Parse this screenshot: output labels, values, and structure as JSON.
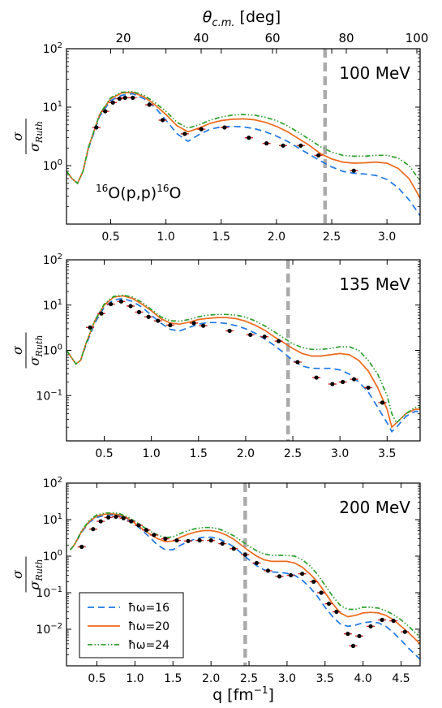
{
  "figure": {
    "top_axis_label": "θc.m. [deg]",
    "top_axis_symbol": "θ",
    "top_axis_subscript": "c.m.",
    "top_axis_unit": " [deg]",
    "bottom_axis_label": "q [fm⁻¹]",
    "bottom_axis_prefix": "q [fm",
    "bottom_axis_sup": "−1",
    "bottom_axis_suffix": "]",
    "y_label_num": "σ",
    "y_label_den": "σ",
    "y_label_den_sub": "Ruth",
    "reaction_mass_a": "16",
    "reaction_body": "O(p,p)",
    "reaction_mass_b": "16",
    "reaction_tail": "O",
    "top_ticks": [
      "20",
      "40",
      "60",
      "80",
      "100"
    ]
  },
  "legend": {
    "entries": [
      {
        "label": "ħω=16",
        "color": "#1f77e4",
        "style": "dashed"
      },
      {
        "label": "ħω=20",
        "color": "#ee6a1c",
        "style": "solid"
      },
      {
        "label": "ħω=24",
        "color": "#2ca02c",
        "style": "dash-dot-dot"
      }
    ]
  },
  "colors": {
    "hw16": "#1f77e4",
    "hw20": "#ee6a1c",
    "hw24": "#2ca02c",
    "data_point": "#000000",
    "error_bar": "#d62728",
    "reference_line": "#aaaaaa"
  },
  "chart_data": [
    {
      "type": "line",
      "energy_label": "100 MeV",
      "xlim": [
        0.1,
        3.3
      ],
      "ylim": [
        0.1,
        100
      ],
      "y_scale": "log",
      "x_ticks": [
        "0.5",
        "1.0",
        "1.5",
        "2.0",
        "2.5",
        "3.0"
      ],
      "y_ticks": [
        "10⁰",
        "10¹",
        "10²"
      ],
      "reference_line_q": 2.44,
      "series": [
        {
          "name": "ħω=16",
          "x": [
            0.1,
            0.15,
            0.2,
            0.25,
            0.3,
            0.4,
            0.5,
            0.6,
            0.7,
            0.8,
            0.9,
            1.0,
            1.1,
            1.2,
            1.3,
            1.4,
            1.5,
            1.6,
            1.7,
            1.8,
            1.9,
            2.0,
            2.1,
            2.2,
            2.3,
            2.4,
            2.5,
            2.6,
            2.7,
            2.8,
            2.9,
            3.0,
            3.1,
            3.2,
            3.3
          ],
          "y": [
            0.8,
            0.6,
            0.5,
            0.8,
            2.0,
            7.0,
            13.0,
            16.0,
            17.0,
            14.0,
            10.0,
            6.0,
            3.5,
            2.6,
            3.4,
            4.2,
            4.6,
            4.7,
            4.6,
            4.3,
            3.8,
            3.2,
            2.6,
            2.0,
            1.55,
            1.2,
            0.95,
            0.8,
            0.74,
            0.72,
            0.68,
            0.58,
            0.42,
            0.26,
            0.14
          ]
        },
        {
          "name": "ħω=20",
          "x": [
            0.1,
            0.15,
            0.2,
            0.25,
            0.3,
            0.4,
            0.5,
            0.6,
            0.7,
            0.8,
            0.9,
            1.0,
            1.1,
            1.2,
            1.3,
            1.4,
            1.5,
            1.6,
            1.7,
            1.8,
            1.9,
            2.0,
            2.1,
            2.2,
            2.3,
            2.4,
            2.5,
            2.6,
            2.7,
            2.8,
            2.9,
            3.0,
            3.1,
            3.2,
            3.3
          ],
          "y": [
            0.8,
            0.6,
            0.5,
            0.8,
            2.1,
            7.5,
            14.0,
            17.5,
            18.0,
            15.0,
            11.0,
            7.5,
            4.8,
            3.8,
            4.4,
            5.3,
            5.9,
            6.2,
            6.3,
            6.1,
            5.5,
            4.7,
            3.8,
            2.9,
            2.2,
            1.6,
            1.3,
            1.15,
            1.1,
            1.12,
            1.15,
            1.1,
            0.9,
            0.6,
            0.28
          ]
        },
        {
          "name": "ħω=24",
          "x": [
            0.1,
            0.15,
            0.2,
            0.25,
            0.3,
            0.4,
            0.5,
            0.6,
            0.7,
            0.8,
            0.9,
            1.0,
            1.1,
            1.2,
            1.3,
            1.4,
            1.5,
            1.6,
            1.7,
            1.8,
            1.9,
            2.0,
            2.1,
            2.2,
            2.3,
            2.4,
            2.5,
            2.6,
            2.7,
            2.8,
            2.9,
            3.0,
            3.1,
            3.2,
            3.3
          ],
          "y": [
            0.8,
            0.6,
            0.5,
            0.8,
            2.1,
            7.6,
            14.5,
            18.0,
            18.5,
            16.0,
            12.0,
            8.5,
            5.5,
            4.4,
            5.0,
            6.0,
            6.8,
            7.3,
            7.5,
            7.3,
            6.7,
            5.9,
            4.8,
            3.7,
            2.8,
            2.1,
            1.7,
            1.5,
            1.45,
            1.45,
            1.5,
            1.5,
            1.35,
            1.0,
            0.55
          ]
        }
      ],
      "measured": {
        "x": [
          0.37,
          0.45,
          0.52,
          0.58,
          0.63,
          0.7,
          0.85,
          0.97,
          1.17,
          1.32,
          1.53,
          1.75,
          1.91,
          2.06,
          2.22,
          2.38,
          2.7
        ],
        "y": [
          4.5,
          8.5,
          12.0,
          14.0,
          14.5,
          14.5,
          11.0,
          6.0,
          3.5,
          4.2,
          4.5,
          3.0,
          2.4,
          2.2,
          2.2,
          1.5,
          0.82
        ]
      }
    },
    {
      "type": "line",
      "energy_label": "135 MeV",
      "xlim": [
        0.1,
        3.85
      ],
      "ylim": [
        0.01,
        100
      ],
      "y_scale": "log",
      "x_ticks": [
        "0.5",
        "1.0",
        "1.5",
        "2.0",
        "2.5",
        "3.0",
        "3.5"
      ],
      "y_ticks": [
        "10⁻¹",
        "10⁰",
        "10¹",
        "10²"
      ],
      "reference_line_q": 2.45,
      "series": [
        {
          "name": "ħω=16",
          "x": [
            0.1,
            0.2,
            0.25,
            0.3,
            0.4,
            0.5,
            0.6,
            0.7,
            0.8,
            0.9,
            1.0,
            1.1,
            1.2,
            1.3,
            1.4,
            1.5,
            1.6,
            1.7,
            1.8,
            1.9,
            2.0,
            2.1,
            2.2,
            2.3,
            2.4,
            2.5,
            2.6,
            2.7,
            2.8,
            2.9,
            3.0,
            3.1,
            3.2,
            3.3,
            3.4,
            3.5,
            3.55,
            3.6,
            3.7,
            3.8,
            3.85
          ],
          "y": [
            1.0,
            0.5,
            0.6,
            1.2,
            4.0,
            9.0,
            13.0,
            14.0,
            12.0,
            9.0,
            6.0,
            4.0,
            2.9,
            2.7,
            3.2,
            3.8,
            4.1,
            4.1,
            3.9,
            3.5,
            3.0,
            2.4,
            1.8,
            1.3,
            0.9,
            0.6,
            0.45,
            0.4,
            0.4,
            0.4,
            0.37,
            0.3,
            0.2,
            0.12,
            0.055,
            0.025,
            0.016,
            0.02,
            0.035,
            0.045,
            0.045
          ]
        },
        {
          "name": "ħω=20",
          "x": [
            0.1,
            0.2,
            0.25,
            0.3,
            0.4,
            0.5,
            0.6,
            0.7,
            0.8,
            0.9,
            1.0,
            1.1,
            1.2,
            1.3,
            1.4,
            1.5,
            1.6,
            1.7,
            1.8,
            1.9,
            2.0,
            2.1,
            2.2,
            2.3,
            2.4,
            2.5,
            2.6,
            2.7,
            2.8,
            2.9,
            3.0,
            3.1,
            3.2,
            3.3,
            3.4,
            3.5,
            3.55,
            3.6,
            3.7,
            3.8,
            3.85
          ],
          "y": [
            1.0,
            0.5,
            0.6,
            1.3,
            4.5,
            10.0,
            15.0,
            16.0,
            14.0,
            10.5,
            7.5,
            5.0,
            4.0,
            3.8,
            4.2,
            4.8,
            5.1,
            5.3,
            5.3,
            5.0,
            4.4,
            3.6,
            2.8,
            2.0,
            1.5,
            1.1,
            0.85,
            0.75,
            0.75,
            0.8,
            0.85,
            0.8,
            0.6,
            0.35,
            0.15,
            0.05,
            0.02,
            0.025,
            0.04,
            0.05,
            0.05
          ]
        },
        {
          "name": "ħω=24",
          "x": [
            0.1,
            0.2,
            0.25,
            0.3,
            0.4,
            0.5,
            0.6,
            0.7,
            0.8,
            0.9,
            1.0,
            1.1,
            1.2,
            1.3,
            1.4,
            1.5,
            1.6,
            1.7,
            1.8,
            1.9,
            2.0,
            2.1,
            2.2,
            2.3,
            2.4,
            2.5,
            2.6,
            2.7,
            2.8,
            2.9,
            3.0,
            3.1,
            3.2,
            3.3,
            3.4,
            3.5,
            3.55,
            3.6,
            3.7,
            3.8,
            3.85
          ],
          "y": [
            1.0,
            0.5,
            0.6,
            1.3,
            4.6,
            10.5,
            15.5,
            16.5,
            15.0,
            11.5,
            8.0,
            5.5,
            4.5,
            4.4,
            4.8,
            5.5,
            6.0,
            6.2,
            6.2,
            6.0,
            5.4,
            4.5,
            3.5,
            2.6,
            1.9,
            1.4,
            1.15,
            1.05,
            1.05,
            1.1,
            1.2,
            1.2,
            1.0,
            0.6,
            0.3,
            0.1,
            0.04,
            0.025,
            0.04,
            0.055,
            0.055
          ]
        }
      ],
      "measured": {
        "x": [
          0.35,
          0.47,
          0.57,
          0.68,
          0.78,
          0.87,
          0.97,
          1.07,
          1.2,
          1.45,
          1.55,
          1.83,
          2.05,
          2.2,
          2.35,
          2.55,
          2.75,
          2.92,
          3.03,
          3.15,
          3.3,
          3.45
        ],
        "y": [
          3.2,
          6.5,
          10.5,
          12.0,
          9.5,
          7.0,
          5.5,
          4.5,
          3.6,
          4.0,
          3.5,
          2.7,
          2.2,
          2.0,
          1.6,
          0.55,
          0.25,
          0.18,
          0.2,
          0.23,
          0.15,
          0.07
        ]
      }
    },
    {
      "type": "line",
      "energy_label": "200 MeV",
      "xlim": [
        0.1,
        4.75
      ],
      "ylim": [
        0.001,
        100
      ],
      "y_scale": "log",
      "x_ticks": [
        "0.5",
        "1.0",
        "1.5",
        "2.0",
        "2.5",
        "3.0",
        "3.5",
        "4.0",
        "4.5"
      ],
      "y_ticks": [
        "10⁻²",
        "10⁻¹",
        "10⁰",
        "10¹",
        "10²"
      ],
      "reference_line_q": 2.45,
      "series": [
        {
          "name": "ħω=16",
          "x": [
            0.15,
            0.2,
            0.3,
            0.4,
            0.5,
            0.6,
            0.7,
            0.8,
            0.9,
            1.0,
            1.1,
            1.2,
            1.3,
            1.4,
            1.5,
            1.6,
            1.7,
            1.8,
            1.9,
            2.0,
            2.1,
            2.2,
            2.3,
            2.4,
            2.5,
            2.6,
            2.7,
            2.8,
            2.9,
            3.0,
            3.1,
            3.2,
            3.3,
            3.4,
            3.5,
            3.6,
            3.7,
            3.8,
            3.9,
            4.0,
            4.1,
            4.2,
            4.3,
            4.4,
            4.5,
            4.6,
            4.75
          ],
          "y": [
            1.5,
            2.0,
            4.5,
            8.5,
            11.5,
            13.0,
            13.5,
            12.5,
            10.0,
            7.5,
            5.0,
            3.2,
            2.0,
            1.5,
            1.5,
            2.0,
            2.5,
            3.0,
            3.3,
            3.3,
            3.0,
            2.4,
            1.8,
            1.2,
            0.8,
            0.55,
            0.42,
            0.37,
            0.36,
            0.34,
            0.3,
            0.22,
            0.14,
            0.08,
            0.04,
            0.022,
            0.014,
            0.012,
            0.013,
            0.015,
            0.016,
            0.015,
            0.012,
            0.008,
            0.005,
            0.003,
            0.0015
          ]
        },
        {
          "name": "ħω=20",
          "x": [
            0.15,
            0.2,
            0.3,
            0.4,
            0.5,
            0.6,
            0.7,
            0.8,
            0.9,
            1.0,
            1.1,
            1.2,
            1.3,
            1.4,
            1.5,
            1.6,
            1.7,
            1.8,
            1.9,
            2.0,
            2.1,
            2.2,
            2.3,
            2.4,
            2.5,
            2.6,
            2.7,
            2.8,
            2.9,
            3.0,
            3.1,
            3.2,
            3.3,
            3.4,
            3.5,
            3.6,
            3.7,
            3.8,
            3.9,
            4.0,
            4.1,
            4.2,
            4.3,
            4.4,
            4.5,
            4.6,
            4.75
          ],
          "y": [
            1.5,
            2.0,
            4.8,
            9.0,
            12.5,
            14.0,
            14.5,
            13.5,
            11.0,
            8.0,
            5.5,
            4.0,
            3.0,
            2.5,
            2.6,
            3.3,
            4.0,
            4.6,
            5.0,
            5.0,
            4.6,
            3.8,
            2.9,
            2.0,
            1.4,
            1.0,
            0.8,
            0.72,
            0.72,
            0.72,
            0.65,
            0.5,
            0.33,
            0.2,
            0.1,
            0.05,
            0.028,
            0.022,
            0.024,
            0.028,
            0.029,
            0.028,
            0.024,
            0.018,
            0.012,
            0.008,
            0.004
          ]
        },
        {
          "name": "ħω=24",
          "x": [
            0.15,
            0.2,
            0.3,
            0.4,
            0.5,
            0.6,
            0.7,
            0.8,
            0.9,
            1.0,
            1.1,
            1.2,
            1.3,
            1.4,
            1.5,
            1.6,
            1.7,
            1.8,
            1.9,
            2.0,
            2.1,
            2.2,
            2.3,
            2.4,
            2.5,
            2.6,
            2.7,
            2.8,
            2.9,
            3.0,
            3.1,
            3.2,
            3.3,
            3.4,
            3.5,
            3.6,
            3.7,
            3.8,
            3.9,
            4.0,
            4.1,
            4.2,
            4.3,
            4.4,
            4.5,
            4.6,
            4.75
          ],
          "y": [
            1.5,
            2.0,
            5.0,
            9.5,
            13.5,
            15.0,
            15.5,
            14.5,
            12.0,
            9.0,
            6.5,
            4.8,
            3.8,
            3.2,
            3.4,
            4.2,
            5.0,
            5.7,
            6.1,
            6.1,
            5.6,
            4.6,
            3.6,
            2.6,
            1.9,
            1.4,
            1.15,
            1.05,
            1.05,
            1.05,
            1.0,
            0.8,
            0.55,
            0.32,
            0.16,
            0.08,
            0.045,
            0.035,
            0.035,
            0.04,
            0.04,
            0.038,
            0.032,
            0.025,
            0.018,
            0.012,
            0.006
          ]
        }
      ],
      "measured": {
        "x": [
          0.3,
          0.45,
          0.55,
          0.65,
          0.75,
          0.85,
          0.95,
          1.05,
          1.15,
          1.25,
          1.4,
          1.55,
          1.7,
          1.85,
          2.0,
          2.15,
          2.3,
          2.45,
          2.6,
          2.75,
          2.9,
          3.05,
          3.2,
          3.35,
          3.45,
          3.55,
          3.65,
          3.8,
          3.87,
          3.95,
          4.1,
          4.25,
          4.4,
          4.55
        ],
        "y": [
          1.8,
          5.5,
          9.0,
          11.5,
          12.0,
          11.0,
          9.0,
          7.0,
          5.2,
          3.8,
          3.0,
          2.7,
          2.6,
          2.7,
          2.7,
          2.2,
          1.6,
          1.1,
          0.65,
          0.4,
          0.28,
          0.3,
          0.33,
          0.2,
          0.1,
          0.05,
          0.03,
          0.0075,
          0.0035,
          0.0065,
          0.012,
          0.018,
          0.017,
          0.0085
        ]
      }
    }
  ]
}
